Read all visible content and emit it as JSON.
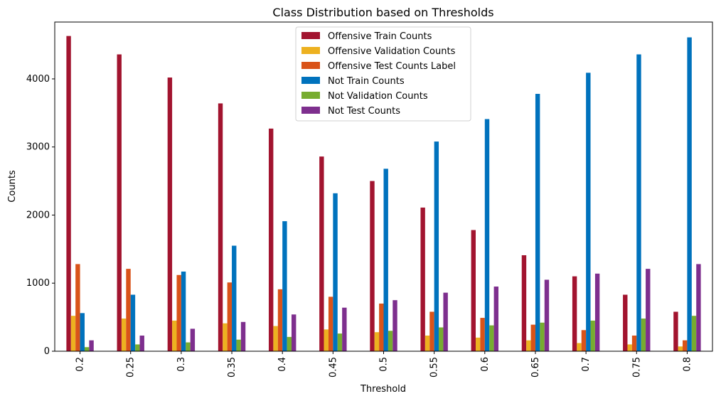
{
  "chart_data": {
    "type": "bar",
    "title": "Class Distribution based on Thresholds",
    "xlabel": "Threshold",
    "ylabel": "Counts",
    "ylim": [
      0,
      4835
    ],
    "yticks": [
      0,
      1000,
      2000,
      3000,
      4000
    ],
    "categories": [
      "0.2",
      "0.25",
      "0.3",
      "0.35",
      "0.4",
      "0.45",
      "0.5",
      "0.55",
      "0.6",
      "0.65",
      "0.7",
      "0.75",
      "0.8"
    ],
    "legend_position": "upper-center",
    "grid": false,
    "series": [
      {
        "name": "Offensive Train Counts",
        "color": "#a2142f",
        "values": [
          4630,
          4360,
          4020,
          3640,
          3270,
          2860,
          2500,
          2110,
          1780,
          1410,
          1100,
          830,
          580
        ]
      },
      {
        "name": "Offensive Validation Counts",
        "color": "#edb120",
        "values": [
          520,
          480,
          450,
          410,
          370,
          320,
          280,
          230,
          200,
          160,
          120,
          100,
          70
        ]
      },
      {
        "name": "Offensive Test Counts Label",
        "color": "#d95319",
        "values": [
          1280,
          1210,
          1120,
          1010,
          910,
          800,
          700,
          580,
          490,
          390,
          310,
          230,
          160
        ]
      },
      {
        "name": "Not Train Counts",
        "color": "#0072bd",
        "values": [
          560,
          830,
          1170,
          1550,
          1910,
          2320,
          2680,
          3080,
          3410,
          3780,
          4090,
          4360,
          4610
        ]
      },
      {
        "name": "Not Validation Counts",
        "color": "#77ac30",
        "values": [
          60,
          100,
          130,
          170,
          210,
          260,
          300,
          350,
          380,
          420,
          450,
          480,
          520
        ]
      },
      {
        "name": "Not Test Counts",
        "color": "#7e2f8e",
        "values": [
          160,
          230,
          330,
          430,
          540,
          640,
          750,
          860,
          950,
          1050,
          1140,
          1210,
          1280
        ]
      }
    ]
  }
}
